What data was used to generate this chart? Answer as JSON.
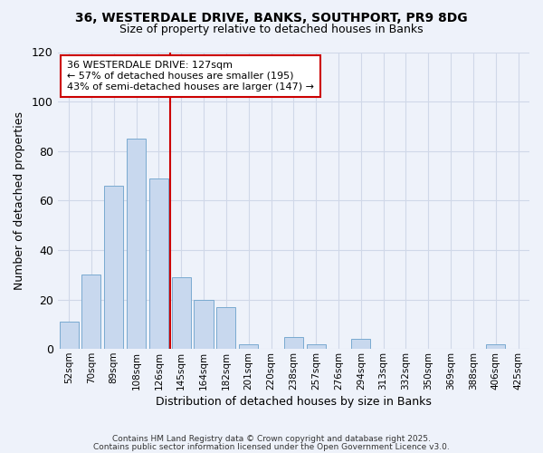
{
  "title": "36, WESTERDALE DRIVE, BANKS, SOUTHPORT, PR9 8DG",
  "subtitle": "Size of property relative to detached houses in Banks",
  "xlabel": "Distribution of detached houses by size in Banks",
  "ylabel": "Number of detached properties",
  "bar_color": "#c8d8ee",
  "bar_edge_color": "#7aaad0",
  "categories": [
    "52sqm",
    "70sqm",
    "89sqm",
    "108sqm",
    "126sqm",
    "145sqm",
    "164sqm",
    "182sqm",
    "201sqm",
    "220sqm",
    "238sqm",
    "257sqm",
    "276sqm",
    "294sqm",
    "313sqm",
    "332sqm",
    "350sqm",
    "369sqm",
    "388sqm",
    "406sqm",
    "425sqm"
  ],
  "values": [
    11,
    30,
    66,
    85,
    69,
    29,
    20,
    17,
    2,
    0,
    5,
    2,
    0,
    4,
    0,
    0,
    0,
    0,
    0,
    2,
    0
  ],
  "ylim": [
    0,
    120
  ],
  "yticks": [
    0,
    20,
    40,
    60,
    80,
    100,
    120
  ],
  "property_bar_index": 4,
  "vline_color": "#cc0000",
  "annotation_title": "36 WESTERDALE DRIVE: 127sqm",
  "annotation_line1": "← 57% of detached houses are smaller (195)",
  "annotation_line2": "43% of semi-detached houses are larger (147) →",
  "annotation_box_color": "#ffffff",
  "annotation_box_edge_color": "#cc0000",
  "grid_color": "#d0d8e8",
  "background_color": "#eef2fa",
  "footer1": "Contains HM Land Registry data © Crown copyright and database right 2025.",
  "footer2": "Contains public sector information licensed under the Open Government Licence v3.0."
}
